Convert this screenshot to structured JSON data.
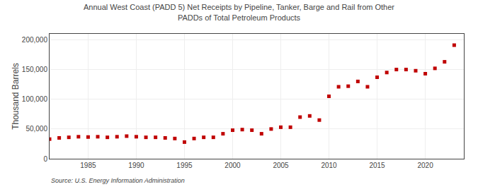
{
  "chart_data": {
    "type": "scatter",
    "title": "Annual West Coast (PADD 5) Net Receipts by Pipeline, Tanker, Barge and Rail from Other\nPADDs of Total Petroleum Products",
    "ylabel": "Thousand Barrels",
    "annotations": [
      "Source: U.S. Energy Information Administration"
    ],
    "x": [
      1981,
      1982,
      1983,
      1984,
      1985,
      1986,
      1987,
      1988,
      1989,
      1990,
      1991,
      1992,
      1993,
      1994,
      1995,
      1996,
      1997,
      1998,
      1999,
      2000,
      2001,
      2002,
      2003,
      2004,
      2005,
      2006,
      2007,
      2008,
      2009,
      2010,
      2011,
      2012,
      2013,
      2014,
      2015,
      2016,
      2017,
      2018,
      2019,
      2020,
      2021,
      2022,
      2023
    ],
    "values": [
      33000,
      35000,
      36000,
      37000,
      36500,
      37000,
      36000,
      37000,
      38000,
      37000,
      36000,
      36000,
      35000,
      34000,
      28000,
      34000,
      36000,
      36000,
      42000,
      48000,
      49000,
      48000,
      42000,
      50000,
      53000,
      53000,
      70000,
      72000,
      65000,
      105000,
      121000,
      122000,
      130000,
      121000,
      137000,
      145000,
      150000,
      150000,
      148000,
      143000,
      152000,
      163000,
      191000
    ],
    "color": "#c00000",
    "marker": "square",
    "xlim": [
      1981,
      2024
    ],
    "ylim": [
      0,
      210000
    ],
    "xticks": [
      1985,
      1990,
      1995,
      2000,
      2005,
      2010,
      2015,
      2020
    ],
    "yticks": [
      0,
      {
        "value": 50000,
        "label": "50,000"
      },
      {
        "value": 100000,
        "label": "100,000"
      },
      {
        "value": 150000,
        "label": "150,000"
      },
      {
        "value": 200000,
        "label": "200,000"
      }
    ],
    "grid": true
  }
}
